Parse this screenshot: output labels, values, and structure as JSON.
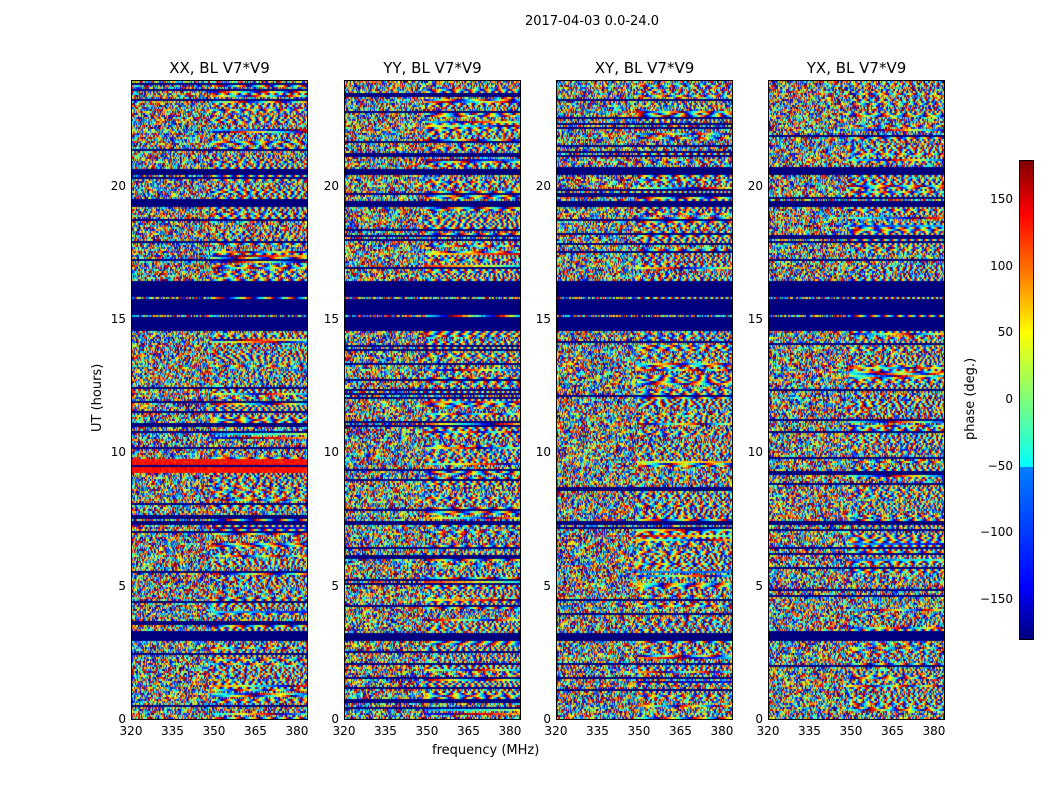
{
  "chart_data": {
    "type": "heatmap",
    "title": "2017-04-03 0.0-24.0",
    "panels": [
      {
        "title": "XX, BL V7*V9"
      },
      {
        "title": "YY, BL V7*V9"
      },
      {
        "title": "XY, BL V7*V9"
      },
      {
        "title": "YX, BL V7*V9"
      }
    ],
    "xlabel": "frequency (MHz)",
    "ylabel": "UT (hours)",
    "xlim": [
      320,
      384
    ],
    "ylim": [
      0,
      24
    ],
    "xticks": [
      "320",
      "335",
      "350",
      "365",
      "380"
    ],
    "yticks": [
      "0",
      "5",
      "10",
      "15",
      "20"
    ],
    "colorbar": {
      "label": "phase (deg.)",
      "range": [
        -180,
        180
      ],
      "ticks": [
        "150",
        "100",
        "50",
        "0",
        "−50",
        "−100",
        "−150"
      ],
      "colormap": "jet"
    },
    "flagged_bands_hours": [
      [
        14.6,
        16.5
      ],
      [
        19.3,
        19.5
      ],
      [
        20.5,
        20.7
      ],
      [
        7.3,
        7.5
      ],
      [
        3.0,
        3.3
      ]
    ],
    "notes_bands": [
      {
        "hours": [
          9.3,
          9.8
        ],
        "panel": "XX",
        "phase_approx": 120
      }
    ]
  }
}
